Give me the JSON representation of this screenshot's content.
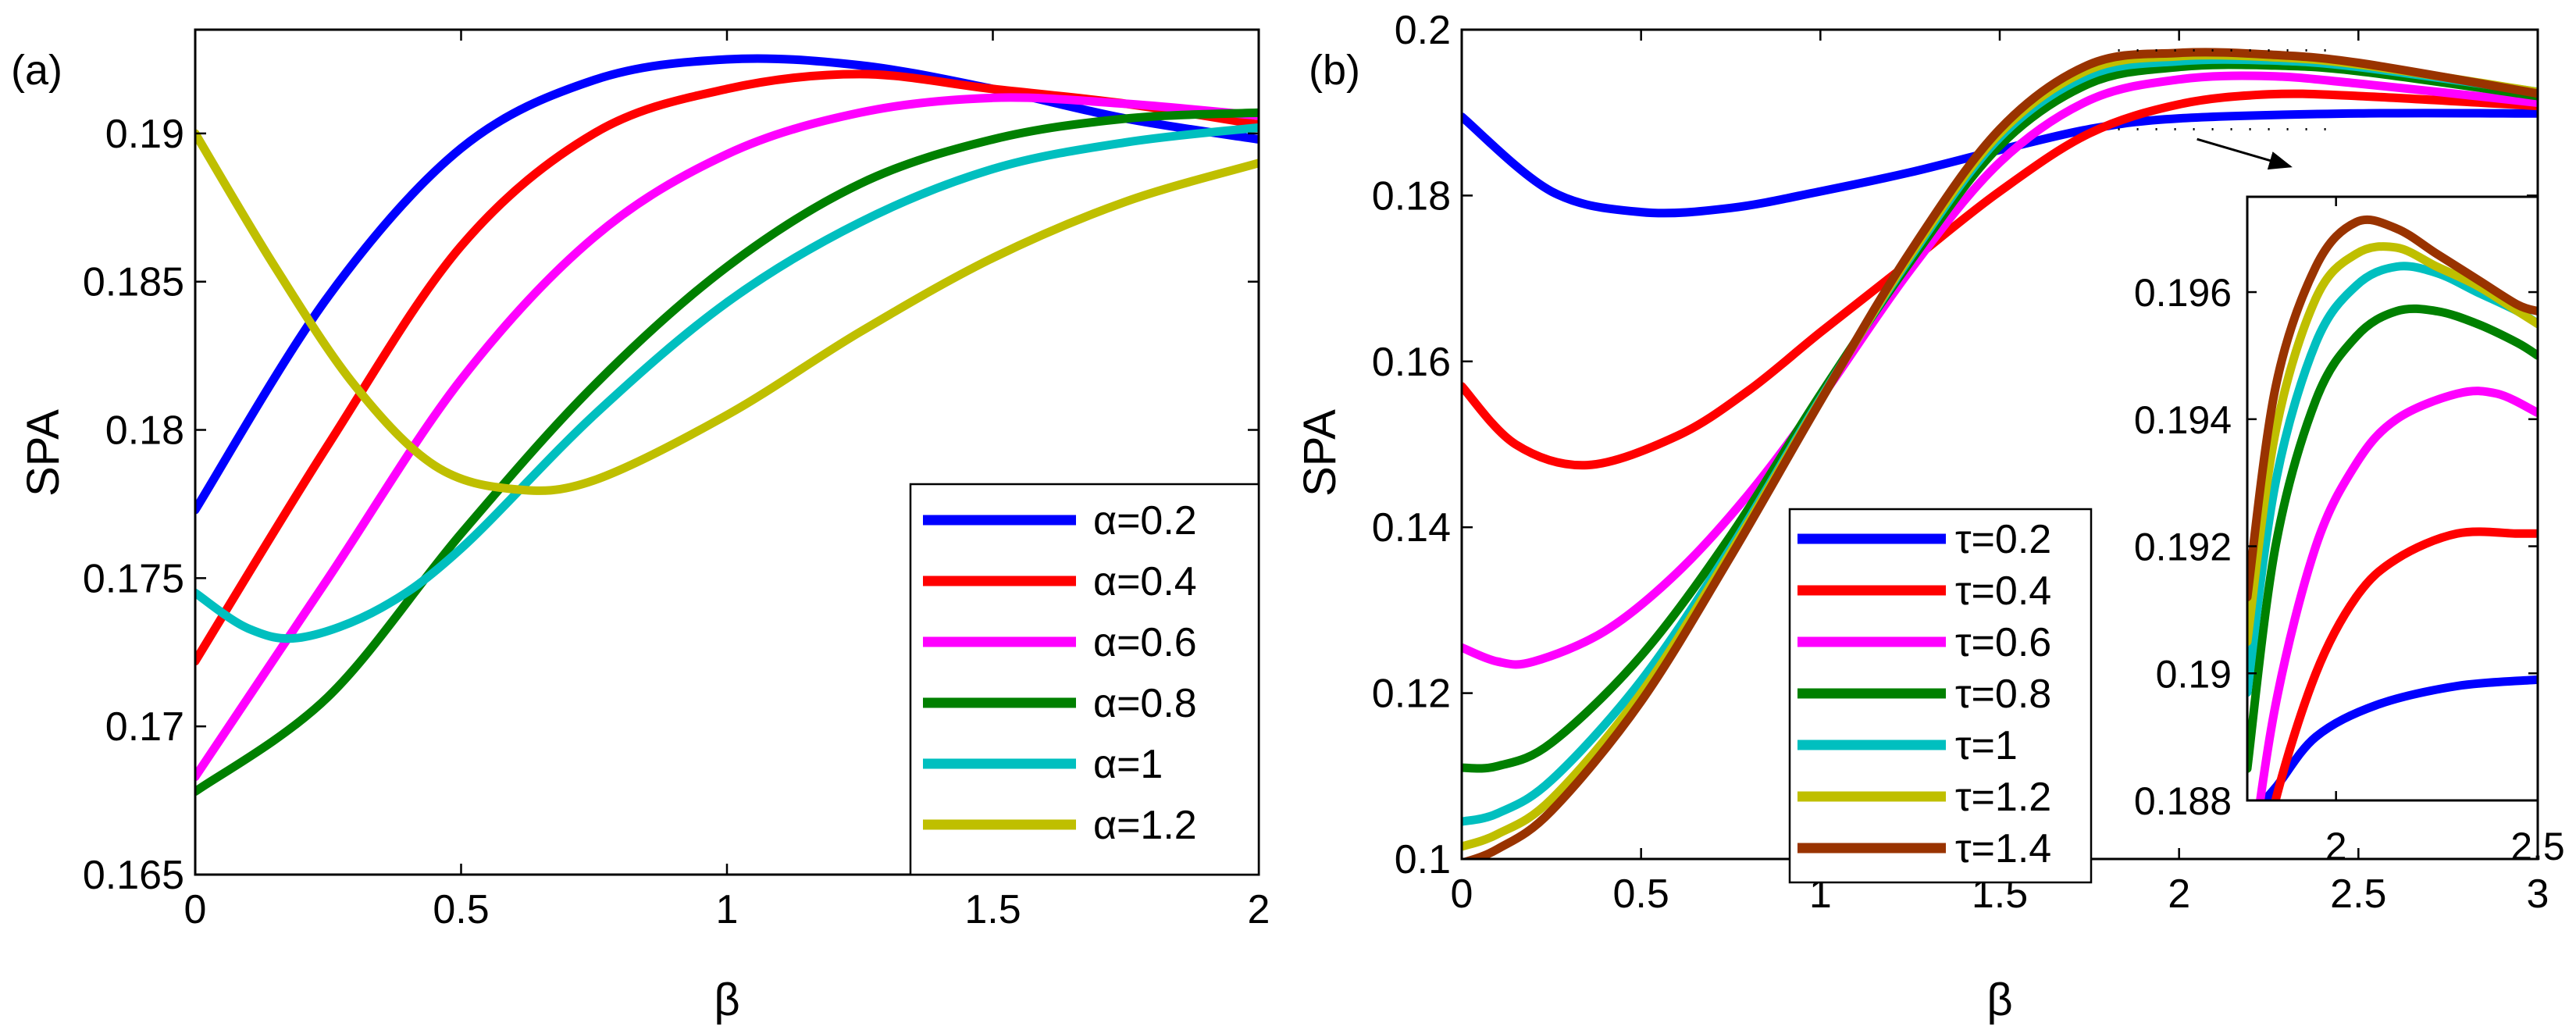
{
  "figure": {
    "panel_a_label": "(a)",
    "panel_b_label": "(b)"
  },
  "chart_data": [
    {
      "type": "line",
      "panel": "(a)",
      "xlabel": "β",
      "ylabel": "SPA",
      "xlim": [
        0,
        2
      ],
      "ylim": [
        0.165,
        0.1935
      ],
      "xticks": [
        "0",
        "0.5",
        "1",
        "1.5",
        "2"
      ],
      "yticks": [
        "0.165",
        "0.17",
        "0.175",
        "0.18",
        "0.185",
        "0.19"
      ],
      "grid": false,
      "legend_position": "bottom-right",
      "series": [
        {
          "name": "α=0.2",
          "color": "#0000ff",
          "x": [
            0,
            0.25,
            0.5,
            0.75,
            1.0,
            1.25,
            1.5,
            1.75,
            2.0
          ],
          "y": [
            0.1773,
            0.1845,
            0.1895,
            0.1918,
            0.1925,
            0.1923,
            0.1915,
            0.1905,
            0.1898
          ]
        },
        {
          "name": "α=0.4",
          "color": "#ff0000",
          "x": [
            0,
            0.25,
            0.5,
            0.75,
            1.0,
            1.25,
            1.5,
            1.75,
            2.0
          ],
          "y": [
            0.1722,
            0.1795,
            0.1862,
            0.19,
            0.1915,
            0.192,
            0.1915,
            0.191,
            0.1903
          ]
        },
        {
          "name": "α=0.6",
          "color": "#ff00ff",
          "x": [
            0,
            0.25,
            0.5,
            0.75,
            1.0,
            1.25,
            1.5,
            1.75,
            2.0
          ],
          "y": [
            0.1683,
            0.175,
            0.1817,
            0.1865,
            0.1893,
            0.1907,
            0.1912,
            0.191,
            0.1906
          ]
        },
        {
          "name": "α=0.8",
          "color": "#008000",
          "x": [
            0,
            0.25,
            0.5,
            0.75,
            1.0,
            1.25,
            1.5,
            1.75,
            2.0
          ],
          "y": [
            0.1678,
            0.171,
            0.1765,
            0.1815,
            0.1855,
            0.1883,
            0.1898,
            0.1905,
            0.1907
          ]
        },
        {
          "name": "α=1",
          "color": "#00bfbf",
          "x": [
            0,
            0.1,
            0.2,
            0.35,
            0.5,
            0.75,
            1.0,
            1.25,
            1.5,
            1.75,
            2.0
          ],
          "y": [
            0.1745,
            0.1733,
            0.173,
            0.174,
            0.176,
            0.1805,
            0.1843,
            0.187,
            0.1888,
            0.1897,
            0.1902
          ]
        },
        {
          "name": "α=1.2",
          "color": "#bfbf00",
          "x": [
            0,
            0.15,
            0.3,
            0.45,
            0.6,
            0.75,
            1.0,
            1.25,
            1.5,
            1.75,
            2.0
          ],
          "y": [
            0.19,
            0.1855,
            0.1815,
            0.1788,
            0.178,
            0.1783,
            0.1805,
            0.1833,
            0.1858,
            0.1877,
            0.189
          ]
        }
      ]
    },
    {
      "type": "line",
      "panel": "(b)",
      "xlabel": "β",
      "ylabel": "SPA",
      "xlim": [
        0,
        3
      ],
      "ylim": [
        0.1,
        0.2
      ],
      "xticks": [
        "0",
        "0.5",
        "1",
        "1.5",
        "2",
        "2.5",
        "3"
      ],
      "yticks": [
        "0.1",
        "0.12",
        "0.14",
        "0.16",
        "0.18",
        "0.2"
      ],
      "grid": false,
      "legend_position": "bottom-center",
      "series": [
        {
          "name": "τ=0.2",
          "color": "#0000ff",
          "x": [
            0,
            0.25,
            0.5,
            0.75,
            1.0,
            1.25,
            1.5,
            1.75,
            2.0,
            2.5,
            3.0
          ],
          "y": [
            0.1895,
            0.1805,
            0.178,
            0.1785,
            0.1805,
            0.1828,
            0.1855,
            0.188,
            0.1893,
            0.1899,
            0.1899
          ]
        },
        {
          "name": "τ=0.4",
          "color": "#ff0000",
          "x": [
            0,
            0.15,
            0.35,
            0.6,
            0.8,
            1.0,
            1.25,
            1.5,
            1.75,
            2.0,
            2.25,
            2.5,
            3.0
          ],
          "y": [
            0.157,
            0.15,
            0.1475,
            0.151,
            0.1565,
            0.1635,
            0.172,
            0.1805,
            0.1875,
            0.191,
            0.1922,
            0.192,
            0.1908
          ]
        },
        {
          "name": "τ=0.6",
          "color": "#ff00ff",
          "x": [
            0,
            0.1,
            0.2,
            0.4,
            0.6,
            0.8,
            1.0,
            1.25,
            1.5,
            1.75,
            2.0,
            2.25,
            2.5,
            3.0
          ],
          "y": [
            0.1255,
            0.1238,
            0.1238,
            0.1275,
            0.1345,
            0.144,
            0.1555,
            0.171,
            0.184,
            0.1915,
            0.194,
            0.1944,
            0.1935,
            0.1912
          ]
        },
        {
          "name": "τ=0.8",
          "color": "#008000",
          "x": [
            0,
            0.1,
            0.25,
            0.5,
            0.75,
            1.0,
            1.25,
            1.5,
            1.75,
            2.0,
            2.25,
            2.5,
            3.0
          ],
          "y": [
            0.111,
            0.1112,
            0.114,
            0.1245,
            0.139,
            0.156,
            0.172,
            0.186,
            0.1935,
            0.1955,
            0.1957,
            0.195,
            0.192
          ]
        },
        {
          "name": "τ=1",
          "color": "#00bfbf",
          "x": [
            0,
            0.1,
            0.25,
            0.5,
            0.75,
            1.0,
            1.25,
            1.5,
            1.75,
            2.0,
            2.25,
            2.5,
            3.0
          ],
          "y": [
            0.1045,
            0.1055,
            0.1095,
            0.1215,
            0.1375,
            0.1555,
            0.1725,
            0.187,
            0.1945,
            0.1962,
            0.1963,
            0.1955,
            0.1925
          ]
        },
        {
          "name": "τ=1.2",
          "color": "#bfbf00",
          "x": [
            0,
            0.1,
            0.25,
            0.5,
            0.75,
            1.0,
            1.25,
            1.5,
            1.75,
            2.0,
            2.25,
            2.5,
            3.0
          ],
          "y": [
            0.1015,
            0.103,
            0.1072,
            0.12,
            0.137,
            0.1553,
            0.1728,
            0.1875,
            0.1952,
            0.1968,
            0.1967,
            0.1958,
            0.1925
          ]
        },
        {
          "name": "τ=1.4",
          "color": "#993300",
          "x": [
            0,
            0.1,
            0.25,
            0.5,
            0.75,
            1.0,
            1.25,
            1.5,
            1.75,
            2.0,
            2.25,
            2.5,
            3.0
          ],
          "y": [
            0.0995,
            0.1012,
            0.1058,
            0.119,
            0.1365,
            0.1552,
            0.1732,
            0.188,
            0.1958,
            0.1972,
            0.197,
            0.196,
            0.1923
          ]
        }
      ]
    },
    {
      "type": "line",
      "panel": "(b) inset",
      "xlim": [
        1.78,
        2.5
      ],
      "ylim": [
        0.188,
        0.1975
      ],
      "xticks": [
        "2",
        "2.5"
      ],
      "yticks": [
        "0.188",
        "0.19",
        "0.192",
        "0.194",
        "0.196"
      ],
      "grid": false,
      "series": [
        {
          "name": "τ=0.2",
          "color": "#0000ff",
          "x": [
            1.78,
            1.85,
            1.95,
            2.1,
            2.3,
            2.5
          ],
          "y": [
            0.1877,
            0.1882,
            0.189,
            0.1895,
            0.1898,
            0.1899
          ]
        },
        {
          "name": "τ=0.4",
          "color": "#ff0000",
          "x": [
            1.78,
            1.85,
            1.95,
            2.05,
            2.15,
            2.3,
            2.45,
            2.5
          ],
          "y": [
            0.1858,
            0.188,
            0.19,
            0.1912,
            0.1918,
            0.1922,
            0.1922,
            0.1922
          ]
        },
        {
          "name": "τ=0.6",
          "color": "#ff00ff",
          "x": [
            1.78,
            1.85,
            1.95,
            2.05,
            2.15,
            2.3,
            2.4,
            2.5
          ],
          "y": [
            0.1865,
            0.1895,
            0.192,
            0.1933,
            0.194,
            0.1944,
            0.1944,
            0.1941
          ]
        },
        {
          "name": "τ=0.8",
          "color": "#008000",
          "x": [
            1.78,
            1.85,
            1.95,
            2.05,
            2.15,
            2.25,
            2.35,
            2.45,
            2.5
          ],
          "y": [
            0.1885,
            0.192,
            0.1943,
            0.1953,
            0.1957,
            0.1957,
            0.1955,
            0.1952,
            0.195
          ]
        },
        {
          "name": "τ=1",
          "color": "#00bfbf",
          "x": [
            1.78,
            1.85,
            1.95,
            2.05,
            2.15,
            2.25,
            2.35,
            2.45,
            2.5
          ],
          "y": [
            0.1897,
            0.193,
            0.1952,
            0.1961,
            0.1964,
            0.1963,
            0.196,
            0.1957,
            0.1955
          ]
        },
        {
          "name": "τ=1.2",
          "color": "#bfbf00",
          "x": [
            1.78,
            1.85,
            1.95,
            2.05,
            2.15,
            2.25,
            2.35,
            2.45,
            2.5
          ],
          "y": [
            0.1905,
            0.1938,
            0.1959,
            0.1966,
            0.1967,
            0.1964,
            0.1961,
            0.1957,
            0.1955
          ]
        },
        {
          "name": "τ=1.4",
          "color": "#993300",
          "x": [
            1.78,
            1.85,
            1.95,
            2.05,
            2.15,
            2.25,
            2.35,
            2.45,
            2.5
          ],
          "y": [
            0.1912,
            0.1945,
            0.1964,
            0.1971,
            0.197,
            0.1966,
            0.1962,
            0.1958,
            0.1957
          ]
        }
      ]
    }
  ]
}
